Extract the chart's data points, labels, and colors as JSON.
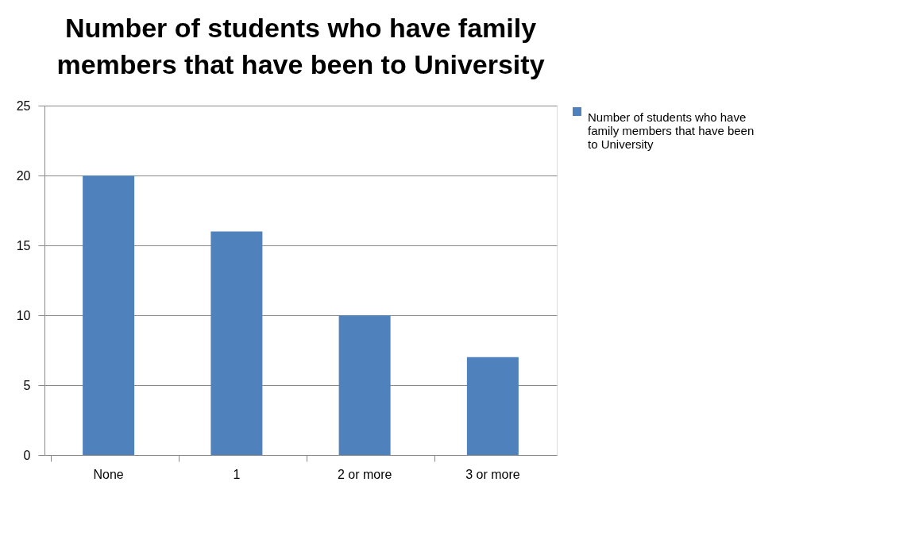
{
  "chart_data": {
    "type": "bar",
    "title": "Number of students who have family members that have been to University",
    "categories": [
      "None",
      "1",
      "2 or more",
      "3 or more"
    ],
    "series": [
      {
        "name": "Number of students who have family members that have been to University",
        "color": "#4f81bd",
        "values": [
          20,
          16,
          10,
          7
        ]
      }
    ],
    "ylim": [
      0,
      25
    ],
    "yticks": [
      0,
      5,
      10,
      15,
      20,
      25
    ],
    "grid": "y",
    "legend": "right"
  }
}
